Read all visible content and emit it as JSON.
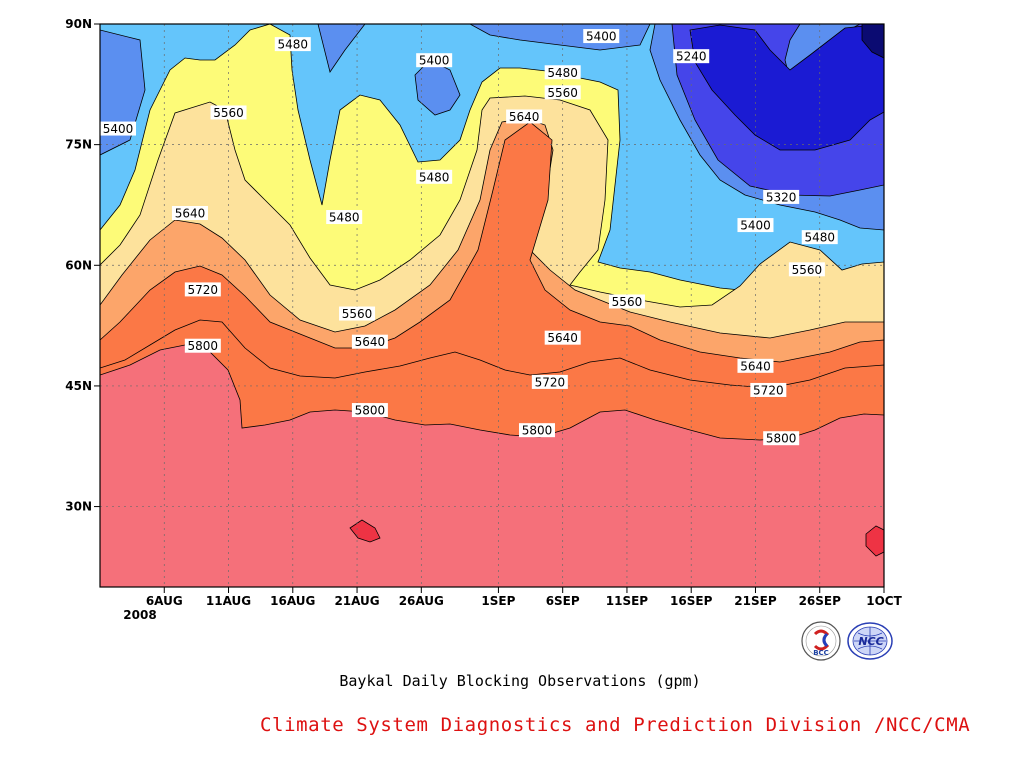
{
  "chart_data": {
    "type": "heatmap",
    "title": "Baykal Daily Blocking Observations (gpm)",
    "x_ticks": [
      "6AUG",
      "11AUG",
      "16AUG",
      "21AUG",
      "26AUG",
      "1SEP",
      "6SEP",
      "11SEP",
      "16SEP",
      "21SEP",
      "26SEP",
      "1OCT"
    ],
    "x_year_label": "2008",
    "y_ticks": [
      "30N",
      "45N",
      "60N",
      "75N",
      "90N"
    ],
    "x_range": [
      "2008-08-01",
      "2008-10-01"
    ],
    "y_range": [
      20,
      90
    ],
    "levels": [
      5240,
      5320,
      5400,
      5480,
      5560,
      5640,
      5720,
      5800
    ],
    "contour_labels": [
      {
        "value": "5480",
        "date": "2008-08-16",
        "lat": 87.5
      },
      {
        "value": "5400",
        "date": "2008-08-27",
        "lat": 85.5
      },
      {
        "value": "5400",
        "date": "2008-09-09",
        "lat": 88.5
      },
      {
        "value": "5240",
        "date": "2008-09-16",
        "lat": 86.0
      },
      {
        "value": "5480",
        "date": "2008-09-06",
        "lat": 84.0
      },
      {
        "value": "5560",
        "date": "2008-09-06",
        "lat": 81.5
      },
      {
        "value": "5640",
        "date": "2008-09-03",
        "lat": 78.5
      },
      {
        "value": "5560",
        "date": "2008-08-11",
        "lat": 79.0
      },
      {
        "value": "5400",
        "date": "2008-08-01",
        "lat": 77.0
      },
      {
        "value": "5480",
        "date": "2008-08-27",
        "lat": 71.0
      },
      {
        "value": "5480",
        "date": "2008-08-20",
        "lat": 66.0
      },
      {
        "value": "5640",
        "date": "2008-08-08",
        "lat": 66.5
      },
      {
        "value": "5320",
        "date": "2008-09-23",
        "lat": 68.5
      },
      {
        "value": "5400",
        "date": "2008-09-21",
        "lat": 65.0
      },
      {
        "value": "5480",
        "date": "2008-09-26",
        "lat": 63.5
      },
      {
        "value": "5560",
        "date": "2008-09-25",
        "lat": 59.5
      },
      {
        "value": "5720",
        "date": "2008-08-09",
        "lat": 57.0
      },
      {
        "value": "5560",
        "date": "2008-09-11",
        "lat": 55.5
      },
      {
        "value": "5560",
        "date": "2008-08-21",
        "lat": 54.0
      },
      {
        "value": "5640",
        "date": "2008-08-22",
        "lat": 50.5
      },
      {
        "value": "5640",
        "date": "2008-09-06",
        "lat": 51.0
      },
      {
        "value": "5640",
        "date": "2008-09-21",
        "lat": 47.5
      },
      {
        "value": "5800",
        "date": "2008-08-09",
        "lat": 50.0
      },
      {
        "value": "5720",
        "date": "2008-09-05",
        "lat": 45.5
      },
      {
        "value": "5720",
        "date": "2008-09-22",
        "lat": 44.5
      },
      {
        "value": "5800",
        "date": "2008-08-22",
        "lat": 42.0
      },
      {
        "value": "5800",
        "date": "2008-09-04",
        "lat": 39.5
      },
      {
        "value": "5800",
        "date": "2008-09-23",
        "lat": 38.5
      }
    ],
    "grid": true,
    "colors": {
      "c5800": "#f5707a",
      "c5720": "#fb7846",
      "c5640": "#fca56a",
      "c5560": "#fde29c",
      "c5480": "#fdfb78",
      "c5400": "#64c5fb",
      "c5320": "#5b8ff0",
      "c5240": "#4545ea",
      "c5160": "#1b1bd3",
      "cmin": "#0b0b72",
      "cmax": "#ee3344"
    }
  },
  "footer": {
    "credit": "Climate System Diagnostics and Prediction Division /NCC/CMA",
    "logo_left_text": "BCC",
    "logo_right_text": "NCC"
  }
}
